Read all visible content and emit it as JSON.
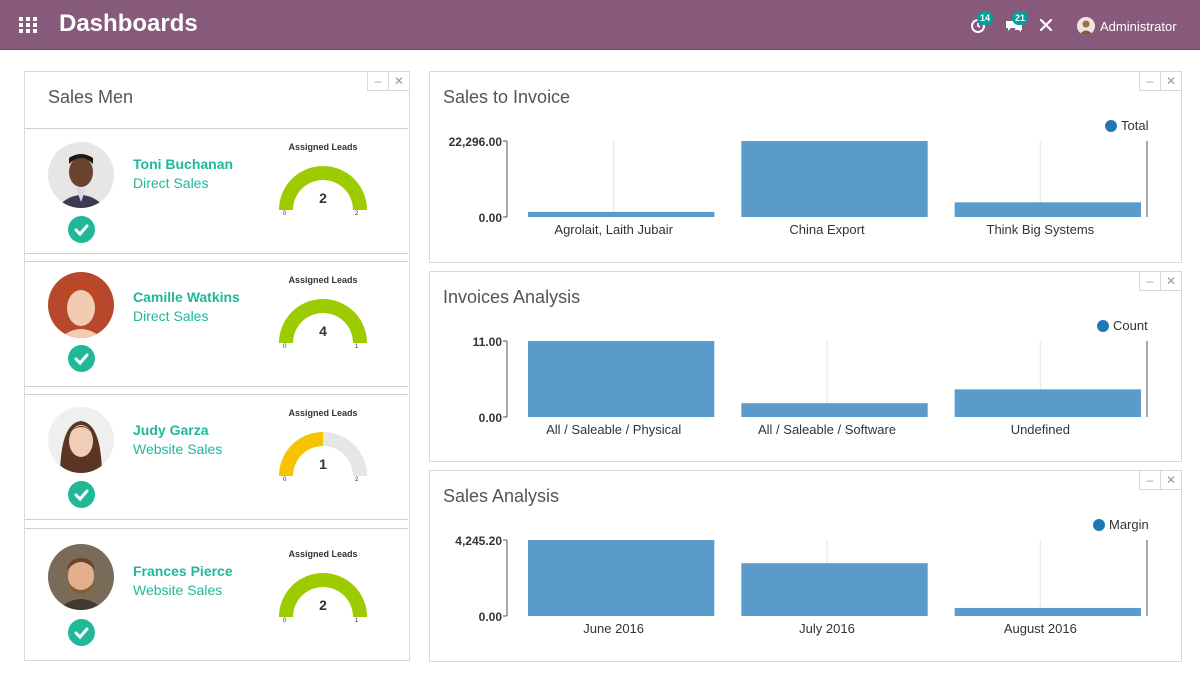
{
  "header": {
    "title": "Dashboards",
    "activity_count": "14",
    "message_count": "21",
    "user_name": "Administrator",
    "bar_color": "#875a7b"
  },
  "sales_men": {
    "title": "Sales Men",
    "gauge_title": "Assigned Leads",
    "people": [
      {
        "name": "Toni Buchanan",
        "team": "Direct Sales",
        "leads": "2",
        "min": "0",
        "max": "2",
        "fill": 1.0,
        "color": "#9ccc00"
      },
      {
        "name": "Camille Watkins",
        "team": "Direct Sales",
        "leads": "4",
        "min": "0",
        "max": "1",
        "fill": 1.0,
        "color": "#9ccc00"
      },
      {
        "name": "Judy Garza",
        "team": "Website Sales",
        "leads": "1",
        "min": "0",
        "max": "2",
        "fill": 0.5,
        "color": "#f7c300"
      },
      {
        "name": "Frances Pierce",
        "team": "Website Sales",
        "leads": "2",
        "min": "0",
        "max": "1",
        "fill": 1.0,
        "color": "#9ccc00"
      }
    ]
  },
  "charts": [
    {
      "title": "Sales to Invoice"
    },
    {
      "title": "Invoices Analysis"
    },
    {
      "title": "Sales Analysis"
    }
  ],
  "chart_data": [
    {
      "type": "bar",
      "title": "Sales to Invoice",
      "categories": [
        "Agrolait, Laith Jubair",
        "China Export",
        "Think Big Systems"
      ],
      "series": [
        {
          "name": "Total",
          "values": [
            1500,
            22296,
            4300
          ]
        }
      ],
      "ytick_labels": [
        "22,296.00",
        "0.00"
      ],
      "ylim": [
        0,
        22296
      ],
      "legend": "top-right",
      "bar_color": "#5b9bcb",
      "dot_color": "#1f77b4"
    },
    {
      "type": "bar",
      "title": "Invoices Analysis",
      "categories": [
        "All / Saleable / Physical",
        "All / Saleable / Software",
        "Undefined"
      ],
      "series": [
        {
          "name": "Count",
          "values": [
            11,
            2,
            4
          ]
        }
      ],
      "ytick_labels": [
        "11.00",
        "0.00"
      ],
      "ylim": [
        0,
        11
      ],
      "legend": "top-right",
      "bar_color": "#5b9bcb",
      "dot_color": "#1f77b4"
    },
    {
      "type": "bar",
      "title": "Sales Analysis",
      "categories": [
        "June 2016",
        "July 2016",
        "August 2016"
      ],
      "series": [
        {
          "name": "Margin",
          "values": [
            4245.2,
            2950,
            450
          ]
        }
      ],
      "ytick_labels": [
        "4,245.20",
        "0.00"
      ],
      "ylim": [
        0,
        4245.2
      ],
      "legend": "top-right",
      "bar_color": "#5b9bcb",
      "dot_color": "#1f77b4"
    }
  ]
}
